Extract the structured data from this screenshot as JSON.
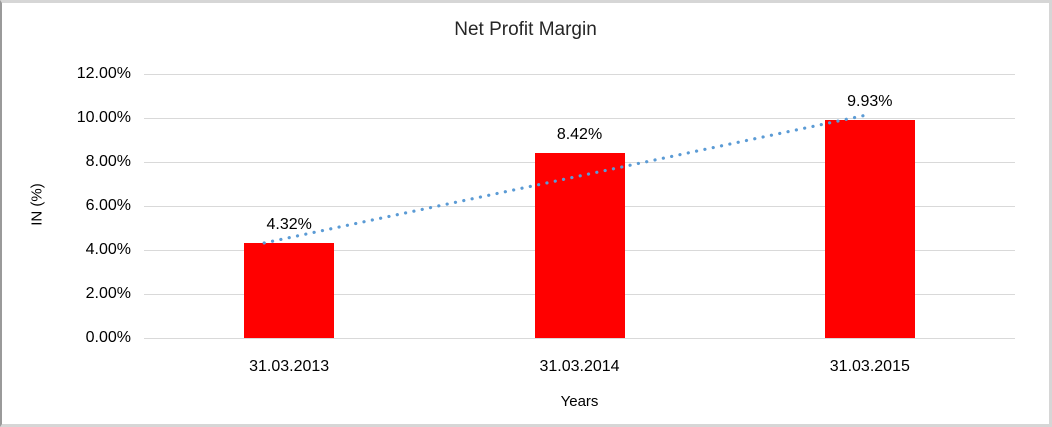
{
  "chart_data": {
    "type": "bar",
    "title": "Net Profit Margin",
    "categories": [
      "31.03.2013",
      "31.03.2014",
      "31.03.2015"
    ],
    "values": [
      4.32,
      8.42,
      9.93
    ],
    "data_labels": [
      "4.32%",
      "8.42%",
      "9.93%"
    ],
    "xlabel": "Years",
    "ylabel": "IN (%)",
    "ylim": [
      0,
      12
    ],
    "ytick_values": [
      0,
      2,
      4,
      6,
      8,
      10,
      12
    ],
    "ytick_labels": [
      "0.00%",
      "2.00%",
      "4.00%",
      "6.00%",
      "8.00%",
      "10.00%",
      "12.00%"
    ],
    "grid": true,
    "legend": "none",
    "bar_color": "#FF0000",
    "gridline_color": "#D9D9D9",
    "axis_line_color": "#D9D9D9",
    "trendline": {
      "type": "linear",
      "style": "dotted",
      "color": "#5B9BD5",
      "start": {
        "x_frac": 0.138,
        "value": 4.32
      },
      "end": {
        "x_frac": 0.83,
        "value": 10.14
      }
    }
  }
}
